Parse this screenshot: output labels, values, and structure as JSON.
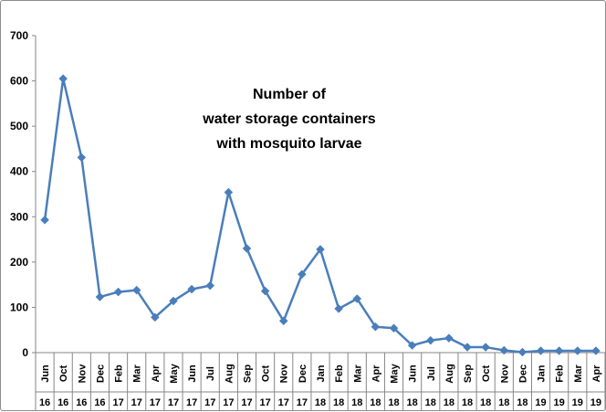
{
  "chart_data": {
    "type": "line",
    "title_lines": [
      "Number of",
      "water storage containers",
      "with mosquito larvae"
    ],
    "xlabel": "",
    "ylabel": "",
    "ylim": [
      0,
      700
    ],
    "y_ticks": [
      "0",
      "100",
      "200",
      "300",
      "400",
      "500",
      "600",
      "700"
    ],
    "grid": false,
    "legend": "none",
    "categories": [
      {
        "month": "Jun",
        "year": "16"
      },
      {
        "month": "Oct",
        "year": "16"
      },
      {
        "month": "Nov",
        "year": "16"
      },
      {
        "month": "Dec",
        "year": "16"
      },
      {
        "month": "Feb",
        "year": "17"
      },
      {
        "month": "Mar",
        "year": "17"
      },
      {
        "month": "Apr",
        "year": "17"
      },
      {
        "month": "May",
        "year": "17"
      },
      {
        "month": "Jun",
        "year": "17"
      },
      {
        "month": "Jul",
        "year": "17"
      },
      {
        "month": "Aug",
        "year": "17"
      },
      {
        "month": "Sep",
        "year": "17"
      },
      {
        "month": "Oct",
        "year": "17"
      },
      {
        "month": "Nov",
        "year": "17"
      },
      {
        "month": "Dec",
        "year": "17"
      },
      {
        "month": "Jan",
        "year": "18"
      },
      {
        "month": "Feb",
        "year": "18"
      },
      {
        "month": "Mar",
        "year": "18"
      },
      {
        "month": "Apr",
        "year": "18"
      },
      {
        "month": "May",
        "year": "18"
      },
      {
        "month": "Jun",
        "year": "18"
      },
      {
        "month": "Jul",
        "year": "18"
      },
      {
        "month": "Aug",
        "year": "18"
      },
      {
        "month": "Sep",
        "year": "18"
      },
      {
        "month": "Oct",
        "year": "18"
      },
      {
        "month": "Nov",
        "year": "18"
      },
      {
        "month": "Dec",
        "year": "18"
      },
      {
        "month": "Jan",
        "year": "19"
      },
      {
        "month": "Feb",
        "year": "19"
      },
      {
        "month": "Mar",
        "year": "19"
      },
      {
        "month": "Apr",
        "year": "19"
      }
    ],
    "series": [
      {
        "name": "Containers with mosquito larvae",
        "color": "#4a7ebb",
        "values": [
          293,
          605,
          431,
          123,
          134,
          138,
          78,
          114,
          140,
          148,
          354,
          230,
          136,
          70,
          173,
          228,
          97,
          119,
          57,
          54,
          16,
          27,
          32,
          12,
          12,
          5,
          1,
          4,
          4,
          4,
          4
        ]
      }
    ]
  }
}
